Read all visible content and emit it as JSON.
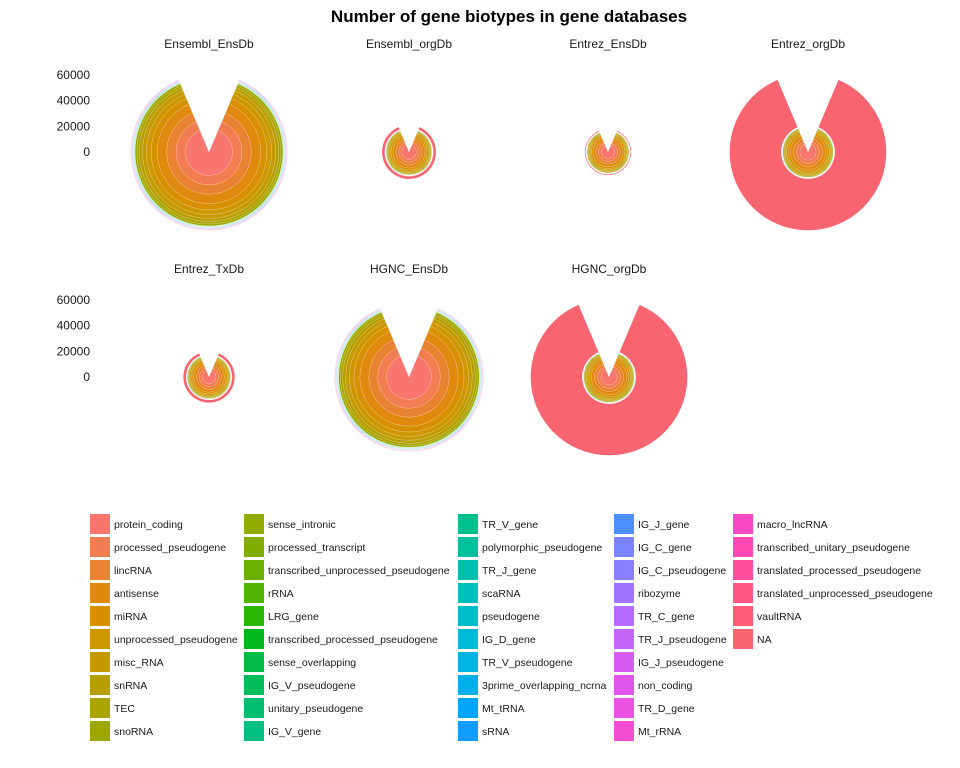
{
  "chart_data": {
    "type": "pie",
    "title": "Number of gene biotypes in gene databases",
    "y_ticks": [
      0,
      20000,
      40000,
      60000
    ],
    "y_range": [
      0,
      60000
    ],
    "legend_position": "bottom",
    "biotypes": [
      {
        "name": "protein_coding",
        "color": "#F8766D"
      },
      {
        "name": "processed_pseudogene",
        "color": "#F27D52"
      },
      {
        "name": "lincRNA",
        "color": "#EA8331"
      },
      {
        "name": "antisense",
        "color": "#E0890E"
      },
      {
        "name": "miRNA",
        "color": "#D89000"
      },
      {
        "name": "unprocessed_pseudogene",
        "color": "#CE9700"
      },
      {
        "name": "misc_RNA",
        "color": "#C49A00"
      },
      {
        "name": "snRNA",
        "color": "#B89F00"
      },
      {
        "name": "TEC",
        "color": "#ABA300"
      },
      {
        "name": "snoRNA",
        "color": "#9EA700"
      },
      {
        "name": "sense_intronic",
        "color": "#90AA00"
      },
      {
        "name": "processed_transcript",
        "color": "#80AD00"
      },
      {
        "name": "transcribed_unprocessed_pseudogene",
        "color": "#6CB100"
      },
      {
        "name": "rRNA",
        "color": "#53B400"
      },
      {
        "name": "LRG_gene",
        "color": "#2AB800"
      },
      {
        "name": "transcribed_processed_pseudogene",
        "color": "#00BA1D"
      },
      {
        "name": "sense_overlapping",
        "color": "#00BB45"
      },
      {
        "name": "IG_V_pseudogene",
        "color": "#00BD5C"
      },
      {
        "name": "unitary_pseudogene",
        "color": "#00BE70"
      },
      {
        "name": "IG_V_gene",
        "color": "#00BF81"
      },
      {
        "name": "TR_V_gene",
        "color": "#00C08E"
      },
      {
        "name": "polymorphic_pseudogene",
        "color": "#00C09E"
      },
      {
        "name": "TR_J_gene",
        "color": "#00C0AD"
      },
      {
        "name": "scaRNA",
        "color": "#00BFBB"
      },
      {
        "name": "pseudogene",
        "color": "#00BCC8"
      },
      {
        "name": "IG_D_gene",
        "color": "#00B9D6"
      },
      {
        "name": "TR_V_pseudogene",
        "color": "#00B4E1"
      },
      {
        "name": "3prime_overlapping_ncrna",
        "color": "#00AEEC"
      },
      {
        "name": "Mt_tRNA",
        "color": "#00A6F5"
      },
      {
        "name": "sRNA",
        "color": "#129CFF"
      },
      {
        "name": "IG_J_gene",
        "color": "#4C90FF"
      },
      {
        "name": "IG_C_gene",
        "color": "#7A84FF"
      },
      {
        "name": "IG_C_pseudogene",
        "color": "#8B7EFF"
      },
      {
        "name": "ribozyme",
        "color": "#A273FF"
      },
      {
        "name": "TR_C_gene",
        "color": "#B46AFF"
      },
      {
        "name": "TR_J_pseudogene",
        "color": "#C564FA"
      },
      {
        "name": "IG_J_pseudogene",
        "color": "#D35BF4"
      },
      {
        "name": "non_coding",
        "color": "#E056EC"
      },
      {
        "name": "TR_D_gene",
        "color": "#EB52E0"
      },
      {
        "name": "Mt_rRNA",
        "color": "#F34DD2"
      },
      {
        "name": "macro_lncRNA",
        "color": "#FA48C2"
      },
      {
        "name": "transcribed_unitary_pseudogene",
        "color": "#FF48B0"
      },
      {
        "name": "translated_processed_pseudogene",
        "color": "#FF4E9D"
      },
      {
        "name": "translated_unprocessed_pseudogene",
        "color": "#FF5686"
      },
      {
        "name": "vaultRNA",
        "color": "#FD5E76"
      },
      {
        "name": "NA",
        "color": "#F8646F"
      }
    ],
    "panels": [
      {
        "name": "Ensembl_EnsDb",
        "total": 61000,
        "na": 0
      },
      {
        "name": "Ensembl_orgDb",
        "total": 21000,
        "na": 2000
      },
      {
        "name": "Entrez_EnsDb",
        "total": 18000,
        "na": 500
      },
      {
        "name": "Entrez_orgDb",
        "total": 61000,
        "na": 40000
      },
      {
        "name": "Entrez_TxDb",
        "total": 20000,
        "na": 2000
      },
      {
        "name": "HGNC_EnsDb",
        "total": 58000,
        "na": 0
      },
      {
        "name": "HGNC_orgDb",
        "total": 61000,
        "na": 40000
      }
    ]
  }
}
